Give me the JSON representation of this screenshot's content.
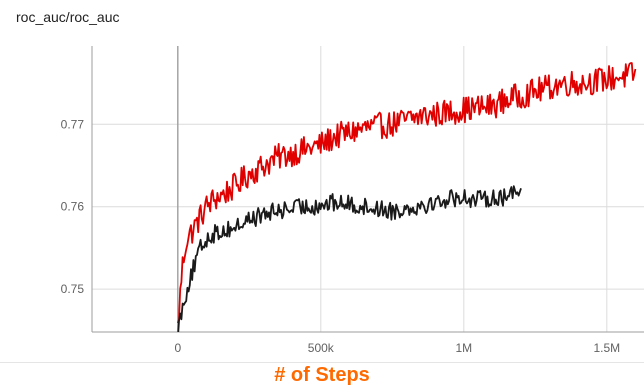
{
  "chart_data": {
    "type": "line",
    "title": "roc_auc/roc_auc",
    "xlabel": "# of Steps",
    "ylabel": "",
    "xlim": [
      -300000,
      1630000
    ],
    "ylim": [
      0.7448,
      0.7795
    ],
    "x_ticks": [
      {
        "value": 0,
        "label": "0"
      },
      {
        "value": 500000,
        "label": "500k"
      },
      {
        "value": 1000000,
        "label": "1M"
      },
      {
        "value": 1500000,
        "label": "1.5M"
      }
    ],
    "y_ticks": [
      {
        "value": 0.75,
        "label": "0.75"
      },
      {
        "value": 0.76,
        "label": "0.76"
      },
      {
        "value": 0.77,
        "label": "0.77"
      }
    ],
    "grid": true,
    "series": [
      {
        "color": "#e00000",
        "points": [
          [
            0,
            0.7452
          ],
          [
            15000,
            0.7525
          ],
          [
            30000,
            0.756
          ],
          [
            50000,
            0.757
          ],
          [
            75000,
            0.7585
          ],
          [
            100000,
            0.76
          ],
          [
            130000,
            0.761
          ],
          [
            160000,
            0.7615
          ],
          [
            200000,
            0.7625
          ],
          [
            250000,
            0.764
          ],
          [
            300000,
            0.765
          ],
          [
            350000,
            0.766
          ],
          [
            400000,
            0.7665
          ],
          [
            450000,
            0.767
          ],
          [
            500000,
            0.7675
          ],
          [
            550000,
            0.7685
          ],
          [
            600000,
            0.769
          ],
          [
            650000,
            0.7695
          ],
          [
            700000,
            0.7698
          ],
          [
            750000,
            0.77
          ],
          [
            800000,
            0.7705
          ],
          [
            850000,
            0.771
          ],
          [
            900000,
            0.7712
          ],
          [
            950000,
            0.7715
          ],
          [
            1000000,
            0.7718
          ],
          [
            1050000,
            0.772
          ],
          [
            1100000,
            0.7722
          ],
          [
            1150000,
            0.773
          ],
          [
            1200000,
            0.7735
          ],
          [
            1250000,
            0.774
          ],
          [
            1300000,
            0.7745
          ],
          [
            1350000,
            0.775
          ],
          [
            1400000,
            0.775
          ],
          [
            1450000,
            0.7752
          ],
          [
            1500000,
            0.7755
          ],
          [
            1550000,
            0.7758
          ],
          [
            1600000,
            0.776
          ]
        ]
      },
      {
        "color": "#1a1a1a",
        "points": [
          [
            0,
            0.745
          ],
          [
            20000,
            0.7485
          ],
          [
            50000,
            0.752
          ],
          [
            80000,
            0.755
          ],
          [
            110000,
            0.7565
          ],
          [
            150000,
            0.757
          ],
          [
            200000,
            0.7575
          ],
          [
            250000,
            0.7585
          ],
          [
            300000,
            0.759
          ],
          [
            350000,
            0.7595
          ],
          [
            400000,
            0.7598
          ],
          [
            450000,
            0.76
          ],
          [
            500000,
            0.7602
          ],
          [
            550000,
            0.7605
          ],
          [
            600000,
            0.7603
          ],
          [
            650000,
            0.76
          ],
          [
            700000,
            0.7598
          ],
          [
            750000,
            0.7595
          ],
          [
            800000,
            0.7598
          ],
          [
            850000,
            0.7602
          ],
          [
            900000,
            0.7605
          ],
          [
            950000,
            0.761
          ],
          [
            1000000,
            0.7612
          ],
          [
            1050000,
            0.7608
          ],
          [
            1100000,
            0.7612
          ],
          [
            1150000,
            0.761
          ],
          [
            1170000,
            0.762
          ],
          [
            1200000,
            0.7625
          ]
        ]
      }
    ]
  }
}
